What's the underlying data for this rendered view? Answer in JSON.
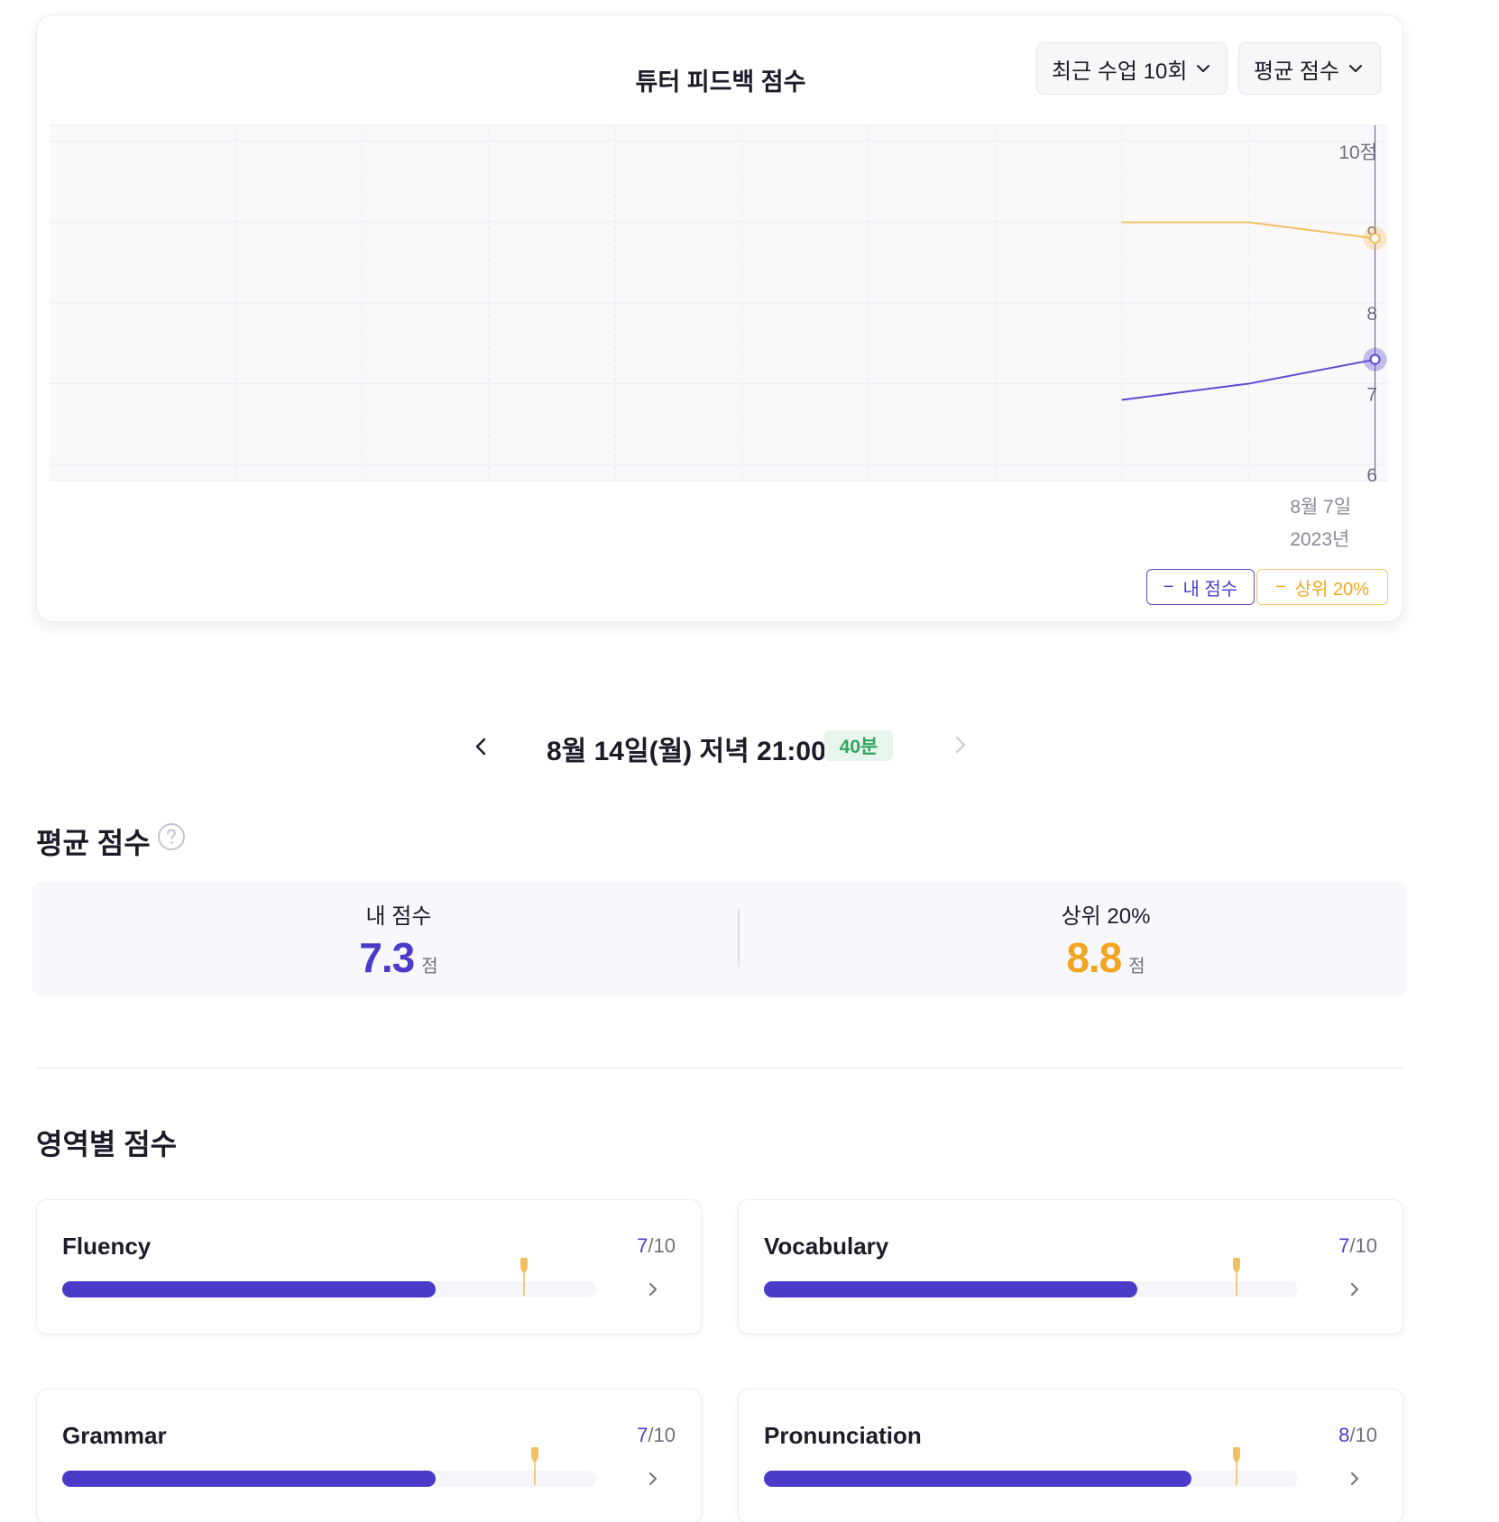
{
  "chart_card": {
    "title": "튜터 피드백 점수",
    "range_dropdown": "최근 수업 10회",
    "metric_dropdown": "평균 점수",
    "legend_mine": "내 점수",
    "legend_top": "상위 20%",
    "legend_dash": "−"
  },
  "chart_data": {
    "type": "line",
    "title": "튜터 피드백 점수",
    "y_unit": "점",
    "ylim": [
      5.8,
      10.2
    ],
    "y_ticks": [
      {
        "value": 10,
        "label": "10점"
      },
      {
        "value": 9,
        "label": "9"
      },
      {
        "value": 8,
        "label": "8"
      },
      {
        "value": 7,
        "label": "7"
      },
      {
        "value": 6,
        "label": "6"
      }
    ],
    "x_slots": 10,
    "x_tick_labels": [
      {
        "slot": 8.3,
        "lines": [
          "8월 7일",
          "2023년"
        ]
      }
    ],
    "highlight_slot": 9,
    "grid": true,
    "series": [
      {
        "name": "내 점수",
        "color": "#5b4bd1",
        "points": [
          [
            7,
            6.8
          ],
          [
            8,
            7.0
          ],
          [
            9,
            7.3
          ]
        ]
      },
      {
        "name": "상위 20%",
        "color": "#f2c060",
        "points": [
          [
            7,
            9.0
          ],
          [
            8,
            9.0
          ],
          [
            9,
            8.8
          ]
        ]
      }
    ]
  },
  "date_nav": {
    "date_text": "8월 14일(월) 저녁 21:00",
    "duration": "40분"
  },
  "average": {
    "title": "평균 점수",
    "mine_label": "내 점수",
    "mine_value": "7.3",
    "top_label": "상위 20%",
    "top_value": "8.8",
    "unit": "점"
  },
  "areas": {
    "title": "영역별 점수",
    "items": [
      {
        "name": "Fluency",
        "score": "7",
        "max": "/10",
        "fill_fraction": 0.7,
        "top_fraction": 0.865
      },
      {
        "name": "Vocabulary",
        "score": "7",
        "max": "/10",
        "fill_fraction": 0.7,
        "top_fraction": 0.885
      },
      {
        "name": "Grammar",
        "score": "7",
        "max": "/10",
        "fill_fraction": 0.7,
        "top_fraction": 0.885
      },
      {
        "name": "Pronunciation",
        "score": "8",
        "max": "/10",
        "fill_fraction": 0.8,
        "top_fraction": 0.885
      }
    ]
  },
  "colors": {
    "primary": "#4a3cc9",
    "accent": "#f2a51f",
    "badge_green": "#34a460"
  }
}
